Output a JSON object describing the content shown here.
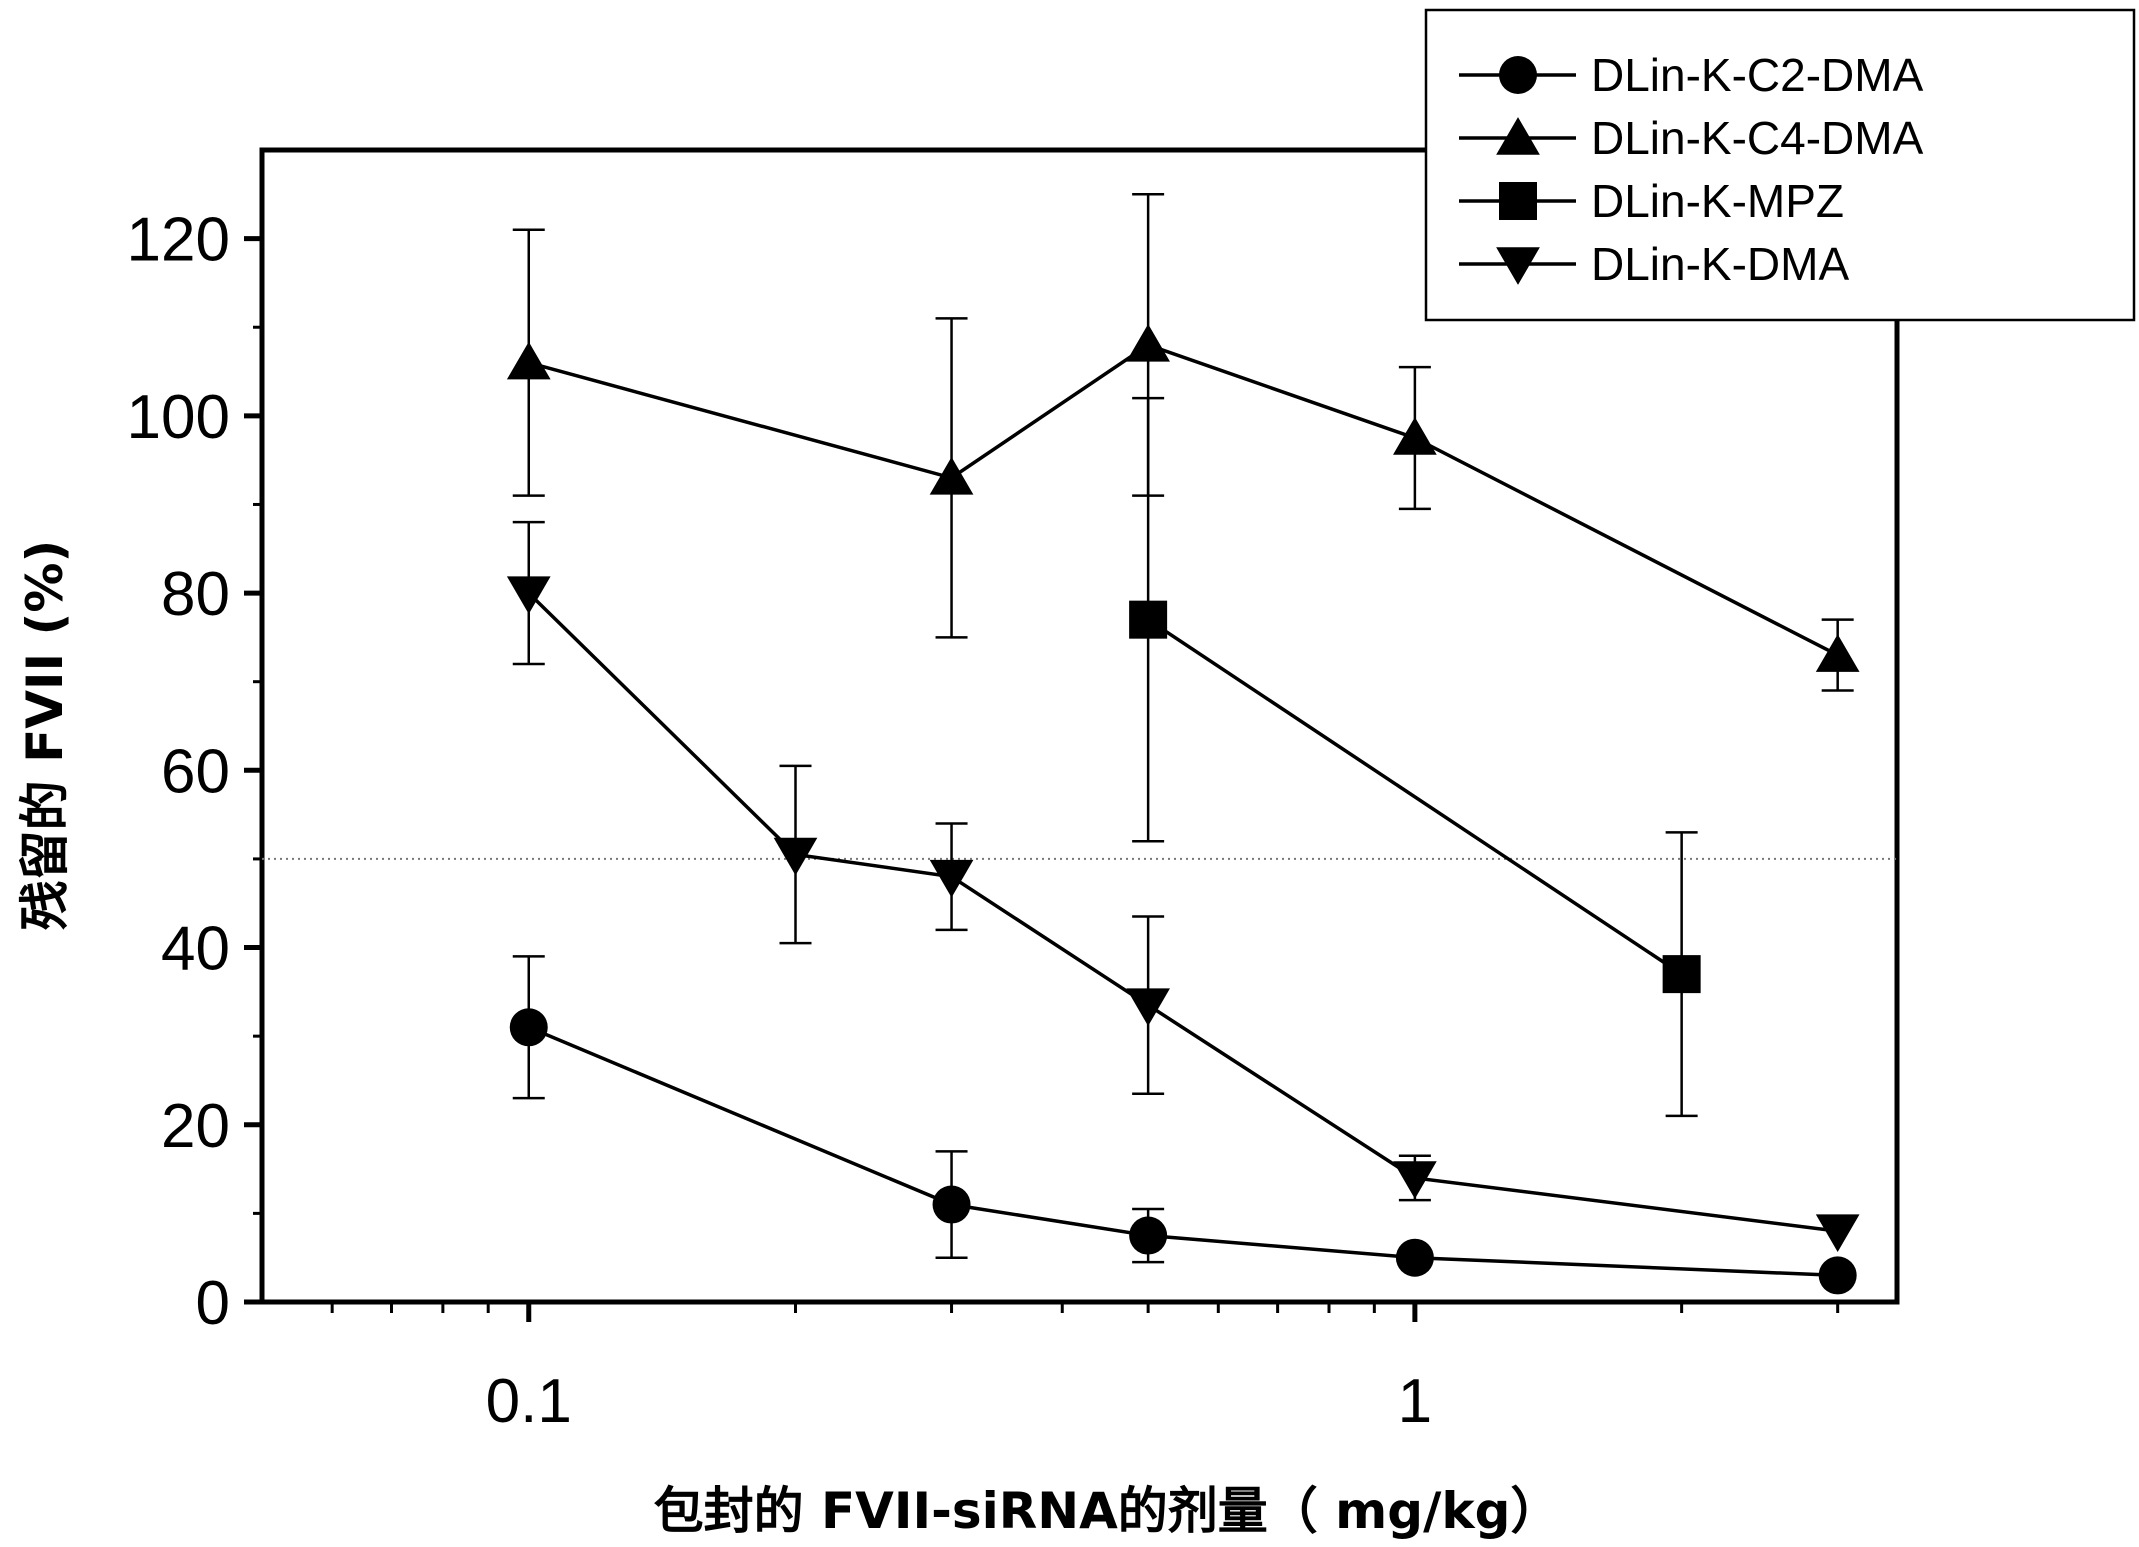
{
  "chart_data": {
    "type": "line",
    "xlabel": "包封的 FVII-siRNA的剂量（ mg/kg）",
    "ylabel": "残留的 FVII (%)",
    "x_scale": "log",
    "xlim": [
      0.05,
      3.5
    ],
    "ylim": [
      0,
      130
    ],
    "x_ticks": [
      {
        "value": 0.1,
        "label": "0.1"
      },
      {
        "value": 1,
        "label": "1"
      }
    ],
    "y_ticks": [
      {
        "value": 0,
        "label": "0"
      },
      {
        "value": 20,
        "label": "20"
      },
      {
        "value": 40,
        "label": "40"
      },
      {
        "value": 60,
        "label": "60"
      },
      {
        "value": 80,
        "label": "80"
      },
      {
        "value": 100,
        "label": "100"
      },
      {
        "value": 120,
        "label": "120"
      }
    ],
    "reference_line_y": 50,
    "grid": false,
    "legend_position": "top-right",
    "series": [
      {
        "name": "DLin-K-C2-DMA",
        "marker": "circle",
        "points": [
          {
            "x": 0.1,
            "y": 31,
            "err": 8
          },
          {
            "x": 0.3,
            "y": 11,
            "err": 6
          },
          {
            "x": 0.5,
            "y": 7.5,
            "err": 3
          },
          {
            "x": 1.0,
            "y": 5,
            "err": 0
          },
          {
            "x": 3.0,
            "y": 3,
            "err": 0
          }
        ]
      },
      {
        "name": "DLin-K-C4-DMA",
        "marker": "triangle-up",
        "points": [
          {
            "x": 0.1,
            "y": 106,
            "err": 15
          },
          {
            "x": 0.3,
            "y": 93,
            "err": 18
          },
          {
            "x": 0.5,
            "y": 108,
            "err": 17
          },
          {
            "x": 1.0,
            "y": 97.5,
            "err": 8
          },
          {
            "x": 3.0,
            "y": 73,
            "err": 4
          }
        ]
      },
      {
        "name": "DLin-K-MPZ",
        "marker": "square",
        "points": [
          {
            "x": 0.5,
            "y": 77,
            "err": 25
          },
          {
            "x": 2.0,
            "y": 37,
            "err": 16
          }
        ]
      },
      {
        "name": "DLin-K-DMA",
        "marker": "triangle-down",
        "points": [
          {
            "x": 0.1,
            "y": 80,
            "err": 8
          },
          {
            "x": 0.2,
            "y": 50.5,
            "err": 10
          },
          {
            "x": 0.3,
            "y": 48,
            "err": 6
          },
          {
            "x": 0.5,
            "y": 33.5,
            "err": 10
          },
          {
            "x": 1.0,
            "y": 14,
            "err": 2.5
          },
          {
            "x": 3.0,
            "y": 8,
            "err": 0
          }
        ]
      }
    ]
  }
}
